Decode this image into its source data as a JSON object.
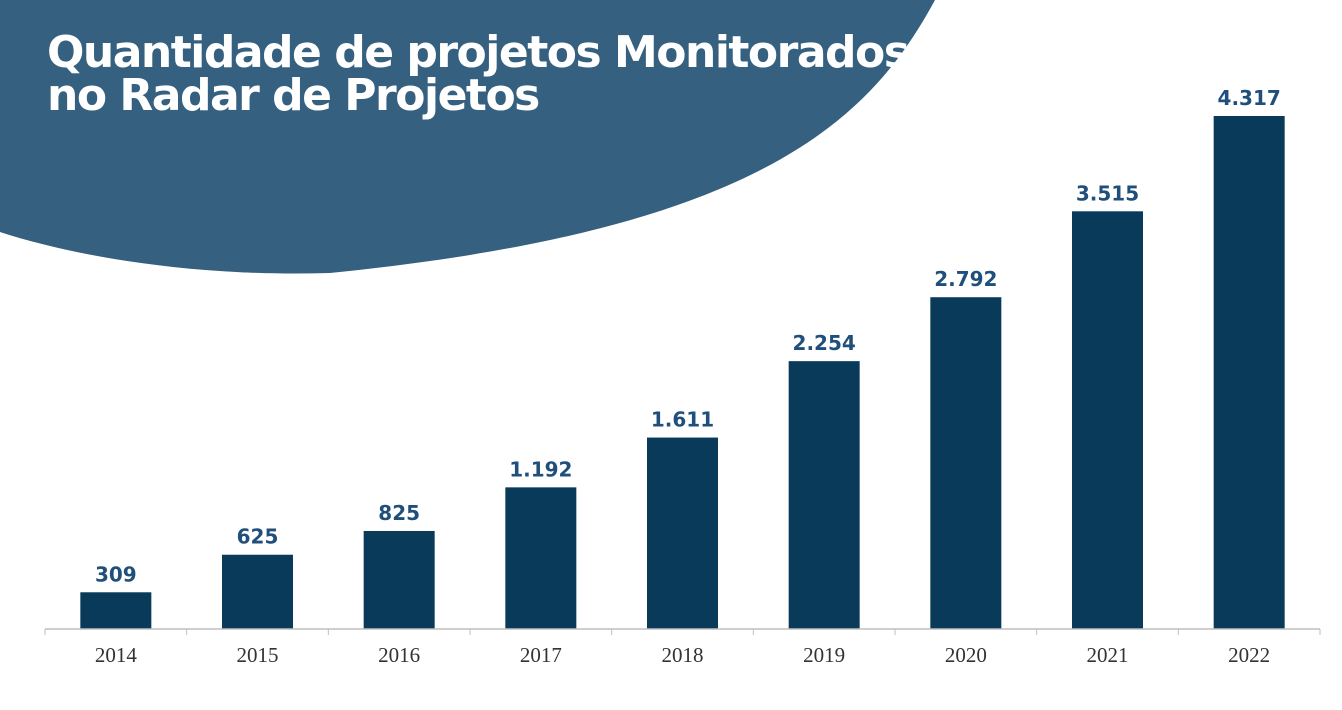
{
  "chart_data": {
    "type": "bar",
    "title_lines": [
      "Quantidade de projetos Monitorados",
      "no Radar de Projetos"
    ],
    "categories": [
      "2014",
      "2015",
      "2016",
      "2017",
      "2018",
      "2019",
      "2020",
      "2021",
      "2022"
    ],
    "values": [
      309,
      625,
      825,
      1192,
      1611,
      2254,
      2792,
      3515,
      4317
    ],
    "value_labels": [
      "309",
      "625",
      "825",
      "1.192",
      "1.611",
      "2.254",
      "2.792",
      "3.515",
      "4.317"
    ],
    "xlabel": "",
    "ylabel": "",
    "ylim": [
      0,
      4317
    ],
    "grid": false,
    "legend": "none",
    "colors": {
      "bar": "#0a3a5a",
      "label": "#1f4f7a",
      "header": "#35607f",
      "axis": "#bfbfbf"
    }
  }
}
